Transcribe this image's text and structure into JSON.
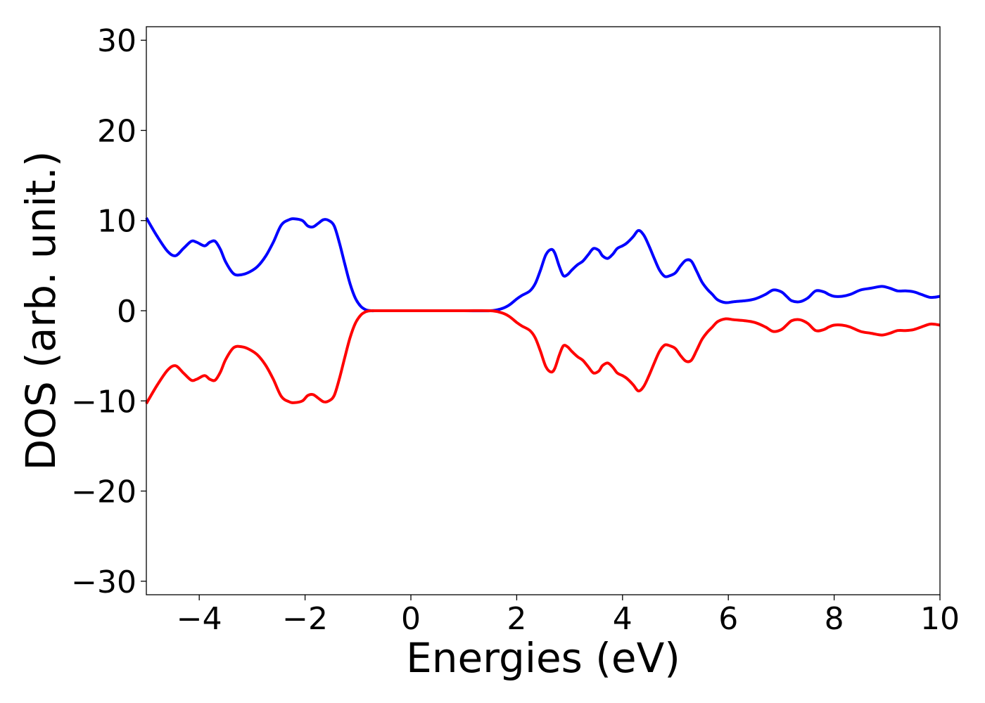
{
  "chart_data": {
    "type": "line",
    "title": "",
    "xlabel": "Energies (eV)",
    "ylabel": "DOS (arb. unit.)",
    "xlim": [
      -5,
      10
    ],
    "ylim": [
      -31.5,
      31.5
    ],
    "xticks": [
      -4,
      -2,
      0,
      2,
      4,
      6,
      8,
      10
    ],
    "xtick_labels": [
      "−4",
      "−2",
      "0",
      "2",
      "4",
      "6",
      "8",
      "10"
    ],
    "yticks": [
      -30,
      -20,
      -10,
      0,
      10,
      20,
      30
    ],
    "ytick_labels": [
      "−30",
      "−20",
      "−10",
      "0",
      "10",
      "20",
      "30"
    ],
    "grid": false,
    "legend": "none",
    "series": [
      {
        "color": "#0000ff",
        "x": [
          -5.0,
          -4.8,
          -4.6,
          -4.45,
          -4.3,
          -4.15,
          -4.05,
          -3.9,
          -3.8,
          -3.7,
          -3.6,
          -3.5,
          -3.35,
          -3.2,
          -3.05,
          -2.9,
          -2.75,
          -2.6,
          -2.45,
          -2.3,
          -2.2,
          -2.05,
          -1.95,
          -1.85,
          -1.75,
          -1.65,
          -1.55,
          -1.45,
          -1.35,
          -1.25,
          -1.15,
          -1.05,
          -0.95,
          -0.85,
          -0.75,
          -0.65,
          -0.5,
          0.0,
          0.5,
          1.0,
          1.5,
          1.7,
          1.85,
          2.0,
          2.1,
          2.25,
          2.35,
          2.45,
          2.55,
          2.65,
          2.72,
          2.8,
          2.88,
          2.96,
          3.04,
          3.15,
          3.25,
          3.35,
          3.45,
          3.55,
          3.62,
          3.72,
          3.82,
          3.9,
          4.0,
          4.08,
          4.2,
          4.3,
          4.4,
          4.5,
          4.6,
          4.7,
          4.8,
          4.9,
          5.0,
          5.1,
          5.2,
          5.3,
          5.4,
          5.5,
          5.6,
          5.7,
          5.8,
          5.95,
          6.1,
          6.3,
          6.5,
          6.7,
          6.85,
          7.0,
          7.1,
          7.2,
          7.35,
          7.5,
          7.65,
          7.8,
          7.9,
          8.0,
          8.15,
          8.3,
          8.5,
          8.7,
          8.9,
          9.05,
          9.2,
          9.35,
          9.5,
          9.65,
          9.8,
          9.9,
          10.0
        ],
        "y": [
          10.3,
          8.3,
          6.6,
          6.1,
          6.9,
          7.7,
          7.6,
          7.2,
          7.6,
          7.7,
          6.8,
          5.4,
          4.1,
          4.0,
          4.3,
          4.9,
          6.0,
          7.6,
          9.5,
          10.1,
          10.2,
          10.0,
          9.4,
          9.3,
          9.7,
          10.1,
          10.0,
          9.4,
          7.5,
          5.2,
          3.0,
          1.4,
          0.5,
          0.1,
          0.0,
          0.0,
          0.0,
          0.0,
          0.0,
          0.0,
          0.0,
          0.2,
          0.6,
          1.3,
          1.7,
          2.2,
          3.0,
          4.5,
          6.2,
          6.8,
          6.4,
          5.0,
          3.9,
          4.0,
          4.5,
          5.1,
          5.5,
          6.2,
          6.9,
          6.7,
          6.1,
          5.8,
          6.3,
          6.9,
          7.2,
          7.5,
          8.2,
          8.9,
          8.4,
          7.2,
          5.8,
          4.5,
          3.8,
          3.9,
          4.2,
          5.0,
          5.6,
          5.5,
          4.4,
          3.2,
          2.4,
          1.8,
          1.2,
          0.9,
          1.0,
          1.1,
          1.3,
          1.8,
          2.3,
          2.1,
          1.6,
          1.1,
          1.0,
          1.4,
          2.2,
          2.1,
          1.8,
          1.6,
          1.6,
          1.8,
          2.3,
          2.5,
          2.7,
          2.5,
          2.2,
          2.2,
          2.1,
          1.8,
          1.5,
          1.5,
          1.6
        ]
      },
      {
        "color": "#ff0000",
        "x": [
          -5.0,
          -4.8,
          -4.6,
          -4.45,
          -4.3,
          -4.15,
          -4.05,
          -3.9,
          -3.8,
          -3.7,
          -3.6,
          -3.5,
          -3.35,
          -3.2,
          -3.05,
          -2.9,
          -2.75,
          -2.6,
          -2.45,
          -2.3,
          -2.2,
          -2.05,
          -1.95,
          -1.85,
          -1.75,
          -1.65,
          -1.55,
          -1.45,
          -1.35,
          -1.25,
          -1.15,
          -1.05,
          -0.95,
          -0.85,
          -0.75,
          -0.65,
          -0.5,
          0.0,
          0.5,
          1.0,
          1.5,
          1.7,
          1.85,
          2.0,
          2.1,
          2.25,
          2.35,
          2.45,
          2.55,
          2.65,
          2.72,
          2.8,
          2.88,
          2.96,
          3.04,
          3.15,
          3.25,
          3.35,
          3.45,
          3.55,
          3.62,
          3.72,
          3.82,
          3.9,
          4.0,
          4.08,
          4.2,
          4.3,
          4.4,
          4.5,
          4.6,
          4.7,
          4.8,
          4.9,
          5.0,
          5.1,
          5.2,
          5.3,
          5.4,
          5.5,
          5.6,
          5.7,
          5.8,
          5.95,
          6.1,
          6.3,
          6.5,
          6.7,
          6.85,
          7.0,
          7.1,
          7.2,
          7.35,
          7.5,
          7.65,
          7.8,
          7.9,
          8.0,
          8.15,
          8.3,
          8.5,
          8.7,
          8.9,
          9.05,
          9.2,
          9.35,
          9.5,
          9.65,
          9.8,
          9.9,
          10.0
        ],
        "y": [
          -10.3,
          -8.3,
          -6.6,
          -6.1,
          -6.9,
          -7.7,
          -7.6,
          -7.2,
          -7.6,
          -7.7,
          -6.8,
          -5.4,
          -4.1,
          -4.0,
          -4.3,
          -4.9,
          -6.0,
          -7.6,
          -9.5,
          -10.1,
          -10.2,
          -10.0,
          -9.4,
          -9.3,
          -9.7,
          -10.1,
          -10.0,
          -9.4,
          -7.5,
          -5.2,
          -3.0,
          -1.4,
          -0.5,
          -0.1,
          0.0,
          0.0,
          0.0,
          0.0,
          0.0,
          0.0,
          0.0,
          -0.2,
          -0.6,
          -1.3,
          -1.7,
          -2.2,
          -3.0,
          -4.5,
          -6.2,
          -6.8,
          -6.4,
          -5.0,
          -3.9,
          -4.0,
          -4.5,
          -5.1,
          -5.5,
          -6.2,
          -6.9,
          -6.7,
          -6.1,
          -5.8,
          -6.3,
          -6.9,
          -7.2,
          -7.5,
          -8.2,
          -8.9,
          -8.4,
          -7.2,
          -5.8,
          -4.5,
          -3.8,
          -3.9,
          -4.2,
          -5.0,
          -5.6,
          -5.5,
          -4.4,
          -3.2,
          -2.4,
          -1.8,
          -1.2,
          -0.9,
          -1.0,
          -1.1,
          -1.3,
          -1.8,
          -2.3,
          -2.1,
          -1.6,
          -1.1,
          -1.0,
          -1.4,
          -2.2,
          -2.1,
          -1.8,
          -1.6,
          -1.6,
          -1.8,
          -2.3,
          -2.5,
          -2.7,
          -2.5,
          -2.2,
          -2.2,
          -2.1,
          -1.8,
          -1.5,
          -1.5,
          -1.6
        ]
      }
    ]
  }
}
